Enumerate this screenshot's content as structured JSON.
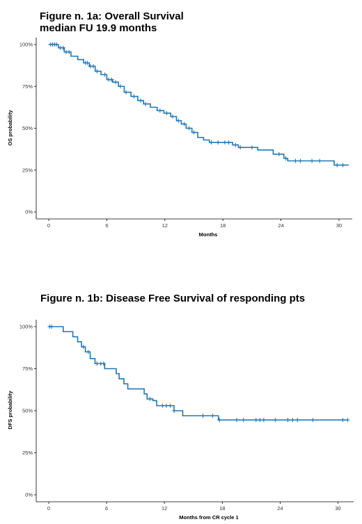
{
  "charts": [
    {
      "title_line1": "Figure n. 1a: Overall Survival",
      "title_line2": "median FU 19.9 months"
    },
    {
      "title_line1": "Figure n. 1b: Disease Free Survival of responding pts"
    }
  ],
  "chart_data": [
    {
      "type": "line",
      "title": "Figure n. 1a: Overall Survival median FU 19.9 months",
      "xlabel": "Months",
      "ylabel": "OS probability",
      "xlim": [
        0,
        31
      ],
      "ylim": [
        0,
        1
      ],
      "x_ticks": [
        0,
        6,
        12,
        18,
        24,
        30
      ],
      "y_ticks": [
        0,
        0.25,
        0.5,
        0.75,
        1
      ],
      "y_tick_labels": [
        "0%",
        "25%",
        "50%",
        "75%",
        "100%"
      ],
      "color": "#1f77b4",
      "grid": false,
      "series": [
        {
          "step": [
            [
              0,
              1.0
            ],
            [
              1.0,
              0.98
            ],
            [
              1.6,
              0.955
            ],
            [
              2.3,
              0.93
            ],
            [
              3.0,
              0.91
            ],
            [
              3.6,
              0.89
            ],
            [
              4.2,
              0.87
            ],
            [
              4.8,
              0.84
            ],
            [
              5.4,
              0.82
            ],
            [
              6.0,
              0.79
            ],
            [
              6.6,
              0.775
            ],
            [
              7.2,
              0.75
            ],
            [
              7.8,
              0.715
            ],
            [
              8.5,
              0.69
            ],
            [
              9.2,
              0.665
            ],
            [
              9.8,
              0.645
            ],
            [
              10.5,
              0.625
            ],
            [
              11.2,
              0.605
            ],
            [
              11.9,
              0.59
            ],
            [
              12.6,
              0.57
            ],
            [
              13.2,
              0.545
            ],
            [
              13.7,
              0.525
            ],
            [
              14.2,
              0.5
            ],
            [
              14.8,
              0.475
            ],
            [
              15.4,
              0.445
            ],
            [
              16.0,
              0.43
            ],
            [
              16.6,
              0.415
            ],
            [
              19.0,
              0.4
            ],
            [
              19.6,
              0.385
            ],
            [
              21.6,
              0.37
            ],
            [
              23.2,
              0.345
            ],
            [
              24.3,
              0.32
            ],
            [
              24.7,
              0.305
            ],
            [
              29.5,
              0.28
            ],
            [
              31,
              0.28
            ]
          ],
          "censored_x": [
            0.2,
            0.4,
            0.6,
            0.8,
            1.2,
            1.5,
            1.8,
            2.1,
            3.8,
            4.0,
            4.3,
            4.6,
            5.0,
            5.8,
            6.2,
            6.5,
            6.9,
            7.4,
            8.0,
            8.8,
            9.5,
            10.0,
            11.5,
            12.2,
            12.8,
            13.4,
            14.0,
            14.5,
            15.0,
            16.8,
            17.5,
            18.2,
            18.6,
            19.3,
            19.8,
            21.0,
            23.8,
            24.5,
            25.5,
            26.0,
            27.2,
            28.0,
            29.8,
            30.4
          ]
        }
      ]
    },
    {
      "type": "line",
      "title": "Figure n. 1b: Disease Free Survival of responding pts",
      "xlabel": "Months from CR cycle 1",
      "ylabel": "DFS probability",
      "xlim": [
        0,
        31
      ],
      "ylim": [
        0,
        1
      ],
      "x_ticks": [
        0,
        6,
        12,
        18,
        24,
        30
      ],
      "y_ticks": [
        0,
        0.25,
        0.5,
        0.75,
        1
      ],
      "y_tick_labels": [
        "0%",
        "25%",
        "50%",
        "75%",
        "100%"
      ],
      "color": "#1f77b4",
      "grid": false,
      "series": [
        {
          "step": [
            [
              0,
              1.0
            ],
            [
              1.5,
              0.97
            ],
            [
              2.5,
              0.94
            ],
            [
              3.0,
              0.91
            ],
            [
              3.4,
              0.88
            ],
            [
              3.8,
              0.85
            ],
            [
              4.3,
              0.81
            ],
            [
              4.8,
              0.78
            ],
            [
              5.8,
              0.75
            ],
            [
              7.0,
              0.72
            ],
            [
              7.3,
              0.69
            ],
            [
              7.8,
              0.66
            ],
            [
              8.2,
              0.63
            ],
            [
              9.9,
              0.6
            ],
            [
              10.2,
              0.57
            ],
            [
              10.8,
              0.56
            ],
            [
              11.2,
              0.53
            ],
            [
              13.0,
              0.5
            ],
            [
              13.9,
              0.47
            ],
            [
              17.6,
              0.445
            ],
            [
              31,
              0.445
            ]
          ],
          "censored_x": [
            0.1,
            0.3,
            3.6,
            4.1,
            5.0,
            5.4,
            5.7,
            10.5,
            11.8,
            12.2,
            12.6,
            13.0,
            16.0,
            17.0,
            17.7,
            19.5,
            20.2,
            21.5,
            21.9,
            22.3,
            23.5,
            24.8,
            25.3,
            25.8,
            27.4,
            30.5,
            31.0
          ]
        }
      ]
    }
  ]
}
